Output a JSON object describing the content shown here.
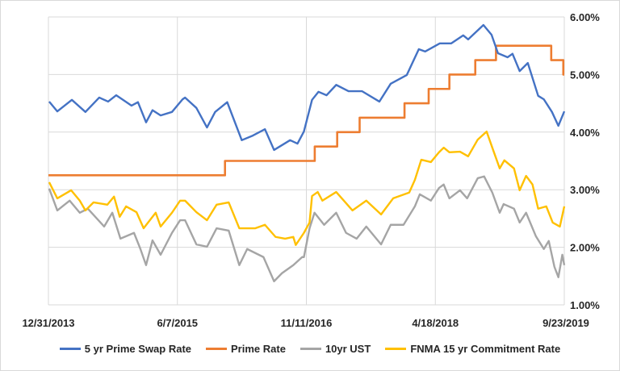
{
  "chart_data": {
    "type": "line",
    "title": "",
    "xlabel": "",
    "ylabel": "",
    "x_type": "date",
    "xlim": [
      "2013-12-31",
      "2019-09-23"
    ],
    "x_ticks": [
      "12/31/2013",
      "6/7/2015",
      "11/11/2016",
      "4/18/2018",
      "9/23/2019"
    ],
    "ylim": [
      1,
      6
    ],
    "y_axis_side": "right",
    "y_ticks": [
      "1.00%",
      "2.00%",
      "3.00%",
      "4.00%",
      "5.00%",
      "6.00%"
    ],
    "grid": {
      "horizontal": true,
      "vertical": true
    },
    "legend_position": "bottom",
    "series": [
      {
        "name": "5 yr Prime Swap Rate",
        "color": "#4472C4",
        "step": false,
        "points": [
          [
            "2014-01-03",
            4.53
          ],
          [
            "2014-02-05",
            4.36
          ],
          [
            "2014-04-05",
            4.56
          ],
          [
            "2014-05-30",
            4.35
          ],
          [
            "2014-07-25",
            4.6
          ],
          [
            "2014-08-30",
            4.53
          ],
          [
            "2014-10-02",
            4.64
          ],
          [
            "2014-12-03",
            4.46
          ],
          [
            "2014-12-29",
            4.52
          ],
          [
            "2015-01-31",
            4.17
          ],
          [
            "2015-02-26",
            4.38
          ],
          [
            "2015-03-31",
            4.29
          ],
          [
            "2015-05-16",
            4.35
          ],
          [
            "2015-06-28",
            4.57
          ],
          [
            "2015-07-08",
            4.6
          ],
          [
            "2015-08-23",
            4.42
          ],
          [
            "2015-10-05",
            4.08
          ],
          [
            "2015-11-07",
            4.35
          ],
          [
            "2015-12-26",
            4.52
          ],
          [
            "2016-02-23",
            3.86
          ],
          [
            "2016-04-08",
            3.94
          ],
          [
            "2016-05-27",
            4.05
          ],
          [
            "2016-07-03",
            3.69
          ],
          [
            "2016-09-06",
            3.86
          ],
          [
            "2016-10-06",
            3.8
          ],
          [
            "2016-11-01",
            4.01
          ],
          [
            "2016-12-04",
            4.56
          ],
          [
            "2016-12-30",
            4.7
          ],
          [
            "2017-02-01",
            4.64
          ],
          [
            "2017-03-12",
            4.82
          ],
          [
            "2017-05-01",
            4.71
          ],
          [
            "2017-06-25",
            4.71
          ],
          [
            "2017-09-03",
            4.53
          ],
          [
            "2017-10-19",
            4.84
          ],
          [
            "2017-12-23",
            4.99
          ],
          [
            "2018-02-10",
            5.44
          ],
          [
            "2018-03-08",
            5.4
          ],
          [
            "2018-05-06",
            5.54
          ],
          [
            "2018-06-21",
            5.54
          ],
          [
            "2018-08-09",
            5.68
          ],
          [
            "2018-08-29",
            5.61
          ],
          [
            "2018-10-30",
            5.86
          ],
          [
            "2018-12-02",
            5.69
          ],
          [
            "2018-12-28",
            5.37
          ],
          [
            "2019-02-05",
            5.3
          ],
          [
            "2019-02-25",
            5.36
          ],
          [
            "2019-03-26",
            5.06
          ],
          [
            "2019-04-28",
            5.2
          ],
          [
            "2019-06-09",
            4.63
          ],
          [
            "2019-07-02",
            4.57
          ],
          [
            "2019-08-04",
            4.35
          ],
          [
            "2019-08-30",
            4.11
          ],
          [
            "2019-09-23",
            4.36
          ]
        ]
      },
      {
        "name": "Prime Rate",
        "color": "#ED7D31",
        "step": true,
        "points": [
          [
            "2013-12-31",
            3.25
          ],
          [
            "2015-12-17",
            3.5
          ],
          [
            "2016-12-15",
            3.75
          ],
          [
            "2017-03-16",
            4.0
          ],
          [
            "2017-06-15",
            4.25
          ],
          [
            "2017-12-14",
            4.5
          ],
          [
            "2018-03-22",
            4.75
          ],
          [
            "2018-06-14",
            5.0
          ],
          [
            "2018-09-27",
            5.25
          ],
          [
            "2018-12-20",
            5.5
          ],
          [
            "2019-08-01",
            5.25
          ],
          [
            "2019-09-19",
            5.0
          ],
          [
            "2019-09-23",
            5.0
          ]
        ]
      },
      {
        "name": "10yr UST",
        "color": "#A5A5A5",
        "step": false,
        "points": [
          [
            "2014-01-03",
            3.02
          ],
          [
            "2014-02-05",
            2.64
          ],
          [
            "2014-03-27",
            2.81
          ],
          [
            "2014-05-07",
            2.6
          ],
          [
            "2014-06-09",
            2.67
          ],
          [
            "2014-08-14",
            2.36
          ],
          [
            "2014-09-16",
            2.6
          ],
          [
            "2014-10-19",
            2.15
          ],
          [
            "2014-12-13",
            2.25
          ],
          [
            "2015-01-08",
            1.97
          ],
          [
            "2015-01-31",
            1.69
          ],
          [
            "2015-02-26",
            2.12
          ],
          [
            "2015-03-31",
            1.87
          ],
          [
            "2015-05-16",
            2.25
          ],
          [
            "2015-06-18",
            2.47
          ],
          [
            "2015-07-08",
            2.47
          ],
          [
            "2015-08-23",
            2.05
          ],
          [
            "2015-10-05",
            2.01
          ],
          [
            "2015-11-13",
            2.33
          ],
          [
            "2016-01-01",
            2.29
          ],
          [
            "2016-02-13",
            1.69
          ],
          [
            "2016-03-16",
            1.97
          ],
          [
            "2016-05-21",
            1.83
          ],
          [
            "2016-07-03",
            1.41
          ],
          [
            "2016-08-04",
            1.55
          ],
          [
            "2016-09-19",
            1.69
          ],
          [
            "2016-10-25",
            1.83
          ],
          [
            "2016-11-01",
            1.83
          ],
          [
            "2016-11-24",
            2.33
          ],
          [
            "2016-12-14",
            2.6
          ],
          [
            "2017-01-22",
            2.39
          ],
          [
            "2017-03-12",
            2.6
          ],
          [
            "2017-04-21",
            2.25
          ],
          [
            "2017-06-03",
            2.15
          ],
          [
            "2017-07-12",
            2.36
          ],
          [
            "2017-09-10",
            2.05
          ],
          [
            "2017-10-19",
            2.39
          ],
          [
            "2017-12-10",
            2.39
          ],
          [
            "2018-01-25",
            2.71
          ],
          [
            "2018-02-14",
            2.92
          ],
          [
            "2018-03-31",
            2.81
          ],
          [
            "2018-05-03",
            3.03
          ],
          [
            "2018-05-22",
            3.09
          ],
          [
            "2018-06-14",
            2.85
          ],
          [
            "2018-07-27",
            2.99
          ],
          [
            "2018-08-25",
            2.85
          ],
          [
            "2018-10-07",
            3.2
          ],
          [
            "2018-11-02",
            3.23
          ],
          [
            "2018-12-05",
            2.95
          ],
          [
            "2019-01-04",
            2.6
          ],
          [
            "2019-01-20",
            2.75
          ],
          [
            "2019-03-03",
            2.67
          ],
          [
            "2019-03-26",
            2.43
          ],
          [
            "2019-04-21",
            2.6
          ],
          [
            "2019-05-31",
            2.19
          ],
          [
            "2019-07-02",
            1.97
          ],
          [
            "2019-07-22",
            2.11
          ],
          [
            "2019-08-14",
            1.66
          ],
          [
            "2019-08-30",
            1.48
          ],
          [
            "2019-09-15",
            1.87
          ],
          [
            "2019-09-23",
            1.69
          ]
        ]
      },
      {
        "name": "FNMA 15 yr Commitment Rate",
        "color": "#FFC000",
        "step": false,
        "points": [
          [
            "2014-01-03",
            3.13
          ],
          [
            "2014-02-05",
            2.85
          ],
          [
            "2014-04-02",
            2.99
          ],
          [
            "2014-05-07",
            2.81
          ],
          [
            "2014-05-30",
            2.64
          ],
          [
            "2014-07-02",
            2.78
          ],
          [
            "2014-08-27",
            2.74
          ],
          [
            "2014-09-23",
            2.88
          ],
          [
            "2014-10-16",
            2.53
          ],
          [
            "2014-11-11",
            2.71
          ],
          [
            "2014-12-23",
            2.61
          ],
          [
            "2015-01-21",
            2.33
          ],
          [
            "2015-03-11",
            2.6
          ],
          [
            "2015-03-31",
            2.36
          ],
          [
            "2015-05-16",
            2.6
          ],
          [
            "2015-06-18",
            2.81
          ],
          [
            "2015-07-08",
            2.81
          ],
          [
            "2015-08-23",
            2.61
          ],
          [
            "2015-10-05",
            2.47
          ],
          [
            "2015-11-13",
            2.74
          ],
          [
            "2016-01-01",
            2.78
          ],
          [
            "2016-02-13",
            2.33
          ],
          [
            "2016-04-18",
            2.33
          ],
          [
            "2016-05-27",
            2.39
          ],
          [
            "2016-07-09",
            2.18
          ],
          [
            "2016-08-17",
            2.15
          ],
          [
            "2016-09-19",
            2.18
          ],
          [
            "2016-09-29",
            2.04
          ],
          [
            "2016-11-01",
            2.25
          ],
          [
            "2016-11-24",
            2.43
          ],
          [
            "2016-12-04",
            2.89
          ],
          [
            "2016-12-27",
            2.96
          ],
          [
            "2017-01-15",
            2.81
          ],
          [
            "2017-03-12",
            2.96
          ],
          [
            "2017-05-17",
            2.64
          ],
          [
            "2017-07-12",
            2.81
          ],
          [
            "2017-09-10",
            2.57
          ],
          [
            "2017-10-29",
            2.85
          ],
          [
            "2018-01-02",
            2.95
          ],
          [
            "2018-01-25",
            3.17
          ],
          [
            "2018-02-20",
            3.52
          ],
          [
            "2018-03-31",
            3.48
          ],
          [
            "2018-05-03",
            3.65
          ],
          [
            "2018-05-22",
            3.73
          ],
          [
            "2018-06-14",
            3.65
          ],
          [
            "2018-07-27",
            3.66
          ],
          [
            "2018-08-29",
            3.58
          ],
          [
            "2018-10-07",
            3.87
          ],
          [
            "2018-11-12",
            4.01
          ],
          [
            "2018-12-05",
            3.73
          ],
          [
            "2019-01-04",
            3.37
          ],
          [
            "2019-01-23",
            3.51
          ],
          [
            "2019-03-03",
            3.37
          ],
          [
            "2019-03-26",
            2.99
          ],
          [
            "2019-04-21",
            3.24
          ],
          [
            "2019-05-17",
            3.09
          ],
          [
            "2019-06-09",
            2.67
          ],
          [
            "2019-07-12",
            2.71
          ],
          [
            "2019-08-07",
            2.43
          ],
          [
            "2019-09-05",
            2.36
          ],
          [
            "2019-09-23",
            2.71
          ]
        ]
      }
    ]
  }
}
